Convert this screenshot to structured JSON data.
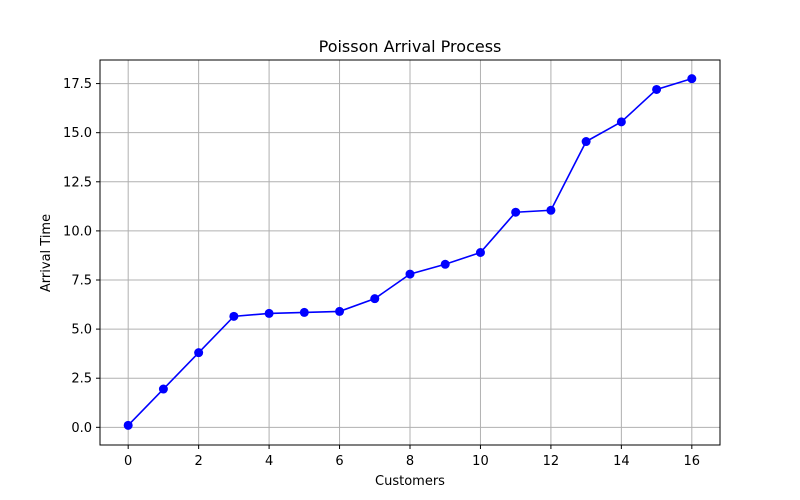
{
  "chart_data": {
    "type": "line",
    "title": "Poisson Arrival Process",
    "xlabel": "Customers",
    "ylabel": "Arrival Time",
    "xlim": [
      -0.8,
      16.8
    ],
    "ylim": [
      -0.9,
      18.7
    ],
    "xticks": [
      0,
      2,
      4,
      6,
      8,
      10,
      12,
      14,
      16
    ],
    "xtick_labels": [
      "0",
      "2",
      "4",
      "6",
      "8",
      "10",
      "12",
      "14",
      "16"
    ],
    "yticks": [
      0.0,
      2.5,
      5.0,
      7.5,
      10.0,
      12.5,
      15.0,
      17.5
    ],
    "ytick_labels": [
      "0.0",
      "2.5",
      "5.0",
      "7.5",
      "10.0",
      "12.5",
      "15.0",
      "17.5"
    ],
    "grid": true,
    "series": [
      {
        "color": "#0000ff",
        "marker": "circle",
        "x": [
          0,
          1,
          2,
          3,
          4,
          5,
          6,
          7,
          8,
          9,
          10,
          11,
          12,
          13,
          14,
          15,
          16
        ],
        "y": [
          0.1,
          1.95,
          3.8,
          5.65,
          5.8,
          5.85,
          5.9,
          6.55,
          7.8,
          8.3,
          8.9,
          10.95,
          11.05,
          14.55,
          15.55,
          17.2,
          17.75
        ]
      }
    ]
  }
}
